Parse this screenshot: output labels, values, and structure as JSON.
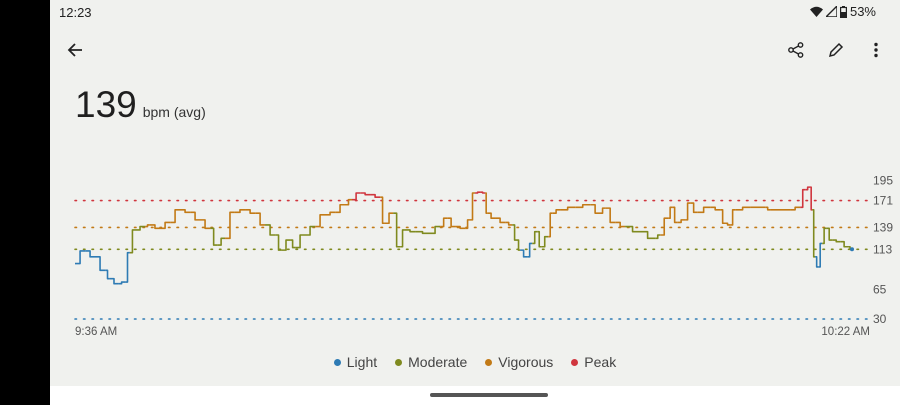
{
  "status_bar": {
    "time": "12:23",
    "battery": "53%",
    "icons": [
      "wifi-icon",
      "signal-icon",
      "battery-icon"
    ]
  },
  "app_bar": {
    "back": "arrow-left-icon",
    "actions": [
      "share-icon",
      "edit-icon",
      "more-vert-icon"
    ]
  },
  "summary": {
    "value": "139",
    "unit": "bpm (avg)"
  },
  "colors": {
    "light": "#2e7bb4",
    "moderate": "#7f8a1f",
    "vigorous": "#c27a16",
    "peak": "#d0363e",
    "background": "#f0f1ee"
  },
  "chart_data": {
    "type": "line",
    "xlabel": "",
    "ylabel": "",
    "x_tick_labels": [
      "9:36 AM",
      "10:22 AM"
    ],
    "y_ticks": [
      195,
      171,
      139,
      113,
      65,
      30
    ],
    "ylim": [
      30,
      195
    ],
    "zone_thresholds": {
      "light_max": 113,
      "moderate_max": 139,
      "vigorous_max": 171
    },
    "gridlines": [
      {
        "value": 171,
        "zone": "peak"
      },
      {
        "value": 139,
        "zone": "vigorous"
      },
      {
        "value": 113,
        "zone": "moderate"
      },
      {
        "value": 30,
        "zone": "light"
      }
    ],
    "legend_position": "bottom",
    "legend": [
      {
        "label": "Light",
        "zone": "light"
      },
      {
        "label": "Moderate",
        "zone": "moderate"
      },
      {
        "label": "Vigorous",
        "zone": "vigorous"
      },
      {
        "label": "Peak",
        "zone": "peak"
      }
    ],
    "points": [
      [
        "9:36:00",
        96
      ],
      [
        "9:36:36",
        111
      ],
      [
        "9:37:11",
        104
      ],
      [
        "9:37:47",
        88
      ],
      [
        "9:38:04",
        78
      ],
      [
        "9:38:33",
        72
      ],
      [
        "9:38:58",
        74
      ],
      [
        "9:39:15",
        109
      ],
      [
        "9:39:33",
        136
      ],
      [
        "9:40:09",
        140
      ],
      [
        "9:40:26",
        142
      ],
      [
        "9:41:02",
        138
      ],
      [
        "9:41:38",
        145
      ],
      [
        "9:42:13",
        160
      ],
      [
        "9:42:49",
        157
      ],
      [
        "9:43:24",
        148
      ],
      [
        "9:44:00",
        138
      ],
      [
        "9:44:25",
        118
      ],
      [
        "9:44:53",
        126
      ],
      [
        "9:45:28",
        157
      ],
      [
        "9:46:04",
        160
      ],
      [
        "9:46:40",
        156
      ],
      [
        "9:47:15",
        142
      ],
      [
        "9:47:51",
        130
      ],
      [
        "9:48:15",
        112
      ],
      [
        "9:48:44",
        124
      ],
      [
        "9:49:02",
        115
      ],
      [
        "9:49:37",
        130
      ],
      [
        "9:50:13",
        140
      ],
      [
        "9:50:48",
        154
      ],
      [
        "9:51:24",
        157
      ],
      [
        "9:51:59",
        166
      ],
      [
        "9:52:24",
        172
      ],
      [
        "9:52:53",
        180
      ],
      [
        "9:53:28",
        178
      ],
      [
        "9:54:04",
        175
      ],
      [
        "9:54:21",
        144
      ],
      [
        "9:54:50",
        156
      ],
      [
        "9:55:15",
        116
      ],
      [
        "9:55:32",
        136
      ],
      [
        "9:56:08",
        134
      ],
      [
        "9:57:01",
        132
      ],
      [
        "9:57:37",
        140
      ],
      [
        "9:58:02",
        150
      ],
      [
        "9:58:30",
        140
      ],
      [
        "9:59:06",
        138
      ],
      [
        "9:59:23",
        148
      ],
      [
        "9:59:41",
        180
      ],
      [
        "9:59:59",
        181
      ],
      [
        "10:00:17",
        180
      ],
      [
        "10:00:24",
        156
      ],
      [
        "10:00:52",
        150
      ],
      [
        "10:01:28",
        145
      ],
      [
        "10:01:53",
        142
      ],
      [
        "10:02:10",
        124
      ],
      [
        "10:02:21",
        112
      ],
      [
        "10:02:46",
        104
      ],
      [
        "10:03:04",
        120
      ],
      [
        "10:03:22",
        134
      ],
      [
        "10:03:36",
        116
      ],
      [
        "10:04:01",
        128
      ],
      [
        "10:04:15",
        156
      ],
      [
        "10:04:43",
        160
      ],
      [
        "10:05:37",
        163
      ],
      [
        "10:06:30",
        166
      ],
      [
        "10:07:05",
        156
      ],
      [
        "10:07:23",
        162
      ],
      [
        "10:07:59",
        145
      ],
      [
        "10:08:34",
        140
      ],
      [
        "10:09:27",
        134
      ],
      [
        "10:10:21",
        126
      ],
      [
        "10:10:39",
        130
      ],
      [
        "10:11:07",
        150
      ],
      [
        "10:11:21",
        163
      ],
      [
        "10:11:39",
        145
      ],
      [
        "10:12:07",
        148
      ],
      [
        "10:12:25",
        168
      ],
      [
        "10:12:50",
        157
      ],
      [
        "10:13:36",
        163
      ],
      [
        "10:14:12",
        160
      ],
      [
        "10:14:29",
        144
      ],
      [
        "10:14:47",
        142
      ],
      [
        "10:15:05",
        160
      ],
      [
        "10:15:58",
        163
      ],
      [
        "10:16:52",
        163
      ],
      [
        "10:17:09",
        160
      ],
      [
        "10:18:20",
        160
      ],
      [
        "10:18:56",
        163
      ],
      [
        "10:19:14",
        184
      ],
      [
        "10:19:31",
        187
      ],
      [
        "10:19:39",
        160
      ],
      [
        "10:19:49",
        104
      ],
      [
        "10:20:00",
        92
      ],
      [
        "10:20:14",
        120
      ],
      [
        "10:20:28",
        138
      ],
      [
        "10:20:50",
        124
      ],
      [
        "10:21:18",
        122
      ],
      [
        "10:21:46",
        116
      ],
      [
        "10:22:00",
        113
      ]
    ]
  }
}
